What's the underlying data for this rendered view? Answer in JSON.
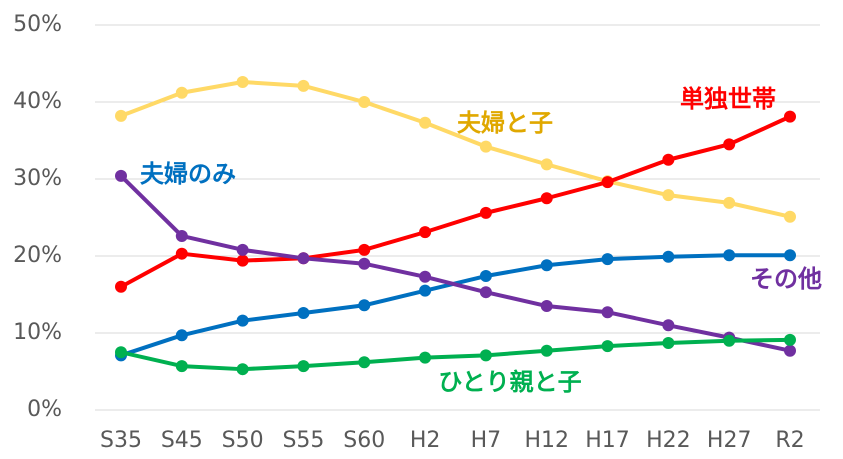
{
  "chart_data": {
    "type": "line",
    "categories": [
      "S35",
      "S45",
      "S50",
      "S55",
      "S60",
      "H2",
      "H7",
      "H12",
      "H17",
      "H22",
      "H27",
      "R2"
    ],
    "series": [
      {
        "name": "夫婦と子",
        "color": "#FFD966",
        "label_color": "#E0A800",
        "values": [
          38.2,
          41.2,
          42.6,
          42.1,
          40.0,
          37.3,
          34.2,
          31.9,
          29.7,
          27.9,
          26.9,
          25.1
        ]
      },
      {
        "name": "単独世帯",
        "color": "#FF0000",
        "label_color": "#FF0000",
        "values": [
          16.0,
          20.3,
          19.4,
          19.7,
          20.8,
          23.1,
          25.6,
          27.5,
          29.6,
          32.5,
          34.5,
          38.1
        ]
      },
      {
        "name": "夫婦のみ",
        "color": "#0070C0",
        "label_color": "#0070C0",
        "values": [
          7.1,
          9.7,
          11.6,
          12.6,
          13.6,
          15.5,
          17.4,
          18.8,
          19.6,
          19.9,
          20.1,
          20.1
        ]
      },
      {
        "name": "その他",
        "color": "#7030A0",
        "label_color": "#7030A0",
        "values": [
          30.4,
          22.6,
          20.8,
          19.7,
          19.0,
          17.3,
          15.3,
          13.5,
          12.7,
          11.0,
          9.4,
          7.7
        ]
      },
      {
        "name": "ひとり親と子",
        "color": "#00B050",
        "label_color": "#00B050",
        "values": [
          7.5,
          5.7,
          5.3,
          5.7,
          6.2,
          6.8,
          7.1,
          7.7,
          8.3,
          8.7,
          9.0,
          9.1
        ]
      }
    ],
    "ylim": [
      0,
      50
    ],
    "yticks": [
      {
        "value": 0,
        "label": "0%"
      },
      {
        "value": 10,
        "label": "10%"
      },
      {
        "value": 20,
        "label": "20%"
      },
      {
        "value": 30,
        "label": "30%"
      },
      {
        "value": 40,
        "label": "40%"
      },
      {
        "value": 50,
        "label": "50%"
      }
    ],
    "grid": true
  }
}
